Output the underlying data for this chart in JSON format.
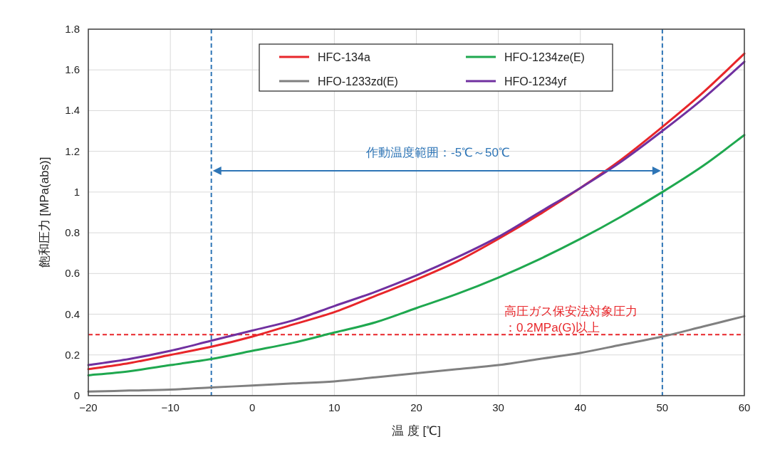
{
  "chart_data": {
    "type": "line",
    "xlabel": "温 度 [℃]",
    "ylabel": "飽和圧力 [MPa(abs)]",
    "x": [
      -20,
      -15,
      -10,
      -5,
      0,
      5,
      10,
      15,
      20,
      25,
      30,
      35,
      40,
      45,
      50,
      55,
      60
    ],
    "series": [
      {
        "name": "HFC-134a",
        "color": "#e8262a",
        "values": [
          0.13,
          0.16,
          0.2,
          0.24,
          0.29,
          0.35,
          0.41,
          0.49,
          0.57,
          0.66,
          0.77,
          0.89,
          1.02,
          1.16,
          1.32,
          1.49,
          1.68
        ]
      },
      {
        "name": "HFO-1233zd(E)",
        "color": "#808080",
        "values": [
          0.02,
          0.025,
          0.03,
          0.04,
          0.05,
          0.06,
          0.07,
          0.09,
          0.11,
          0.13,
          0.15,
          0.18,
          0.21,
          0.25,
          0.29,
          0.34,
          0.39
        ]
      },
      {
        "name": "HFO-1234ze(E)",
        "color": "#1fa84f",
        "values": [
          0.1,
          0.12,
          0.15,
          0.18,
          0.22,
          0.26,
          0.31,
          0.36,
          0.43,
          0.5,
          0.58,
          0.67,
          0.77,
          0.88,
          1.0,
          1.13,
          1.28
        ]
      },
      {
        "name": "HFO-1234yf",
        "color": "#7030a0",
        "values": [
          0.15,
          0.18,
          0.22,
          0.27,
          0.32,
          0.37,
          0.44,
          0.51,
          0.59,
          0.68,
          0.78,
          0.9,
          1.02,
          1.15,
          1.3,
          1.46,
          1.64
        ]
      }
    ],
    "xlim": [
      -20,
      60
    ],
    "xticks": [
      {
        "value": -20,
        "label": "−20"
      },
      {
        "value": -10,
        "label": "−10"
      },
      0,
      10,
      20,
      30,
      40,
      50,
      60
    ],
    "ylim": [
      0,
      1.8
    ],
    "yticks": [
      0,
      0.2,
      0.4,
      0.6,
      0.8,
      1,
      1.2,
      1.4,
      1.6,
      1.8
    ],
    "ref_lines": [
      {
        "axis": "x",
        "value": -5,
        "color": "#2e75b6",
        "line_style": "dashed"
      },
      {
        "axis": "x",
        "value": 50,
        "color": "#2e75b6",
        "line_style": "dashed"
      },
      {
        "axis": "y",
        "value": 0.3,
        "color": "#e8262a",
        "line_style": "dashed"
      }
    ],
    "annotations": [
      "作動温度範囲：-5℃～50℃",
      "高圧ガス保安法対象圧力",
      "：0.2MPa(G)以上"
    ],
    "grid": true,
    "legend": "top",
    "line_style": "solid"
  }
}
